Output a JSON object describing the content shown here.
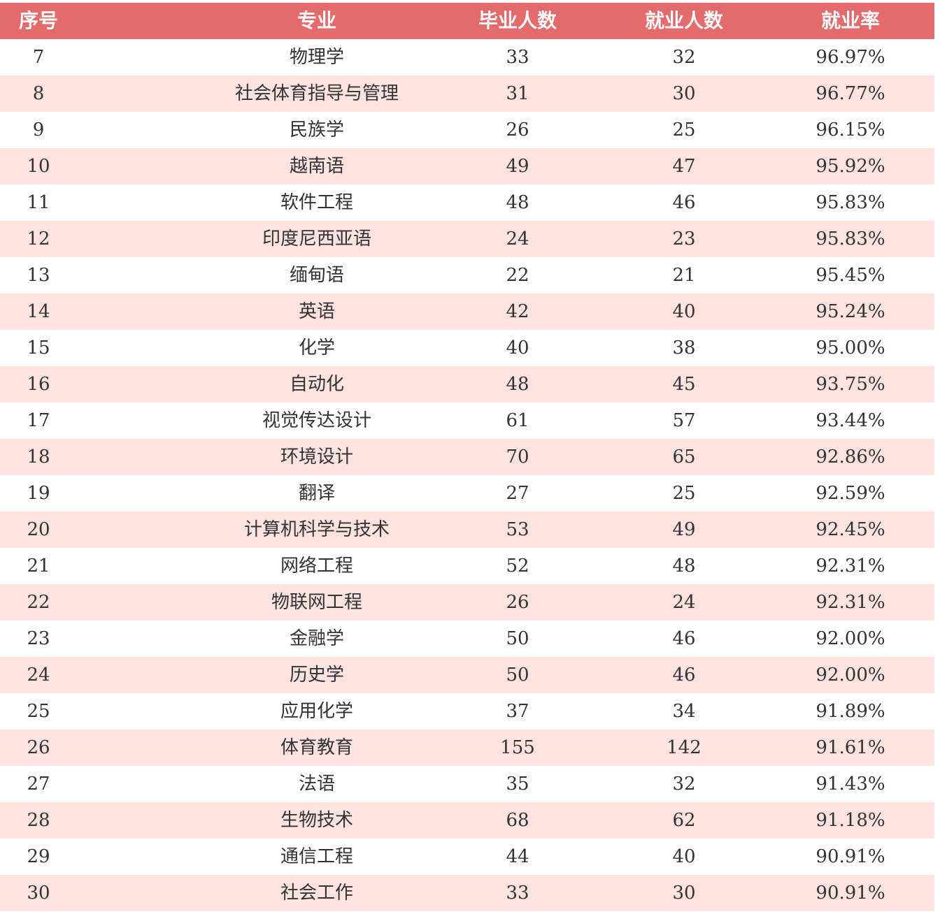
{
  "table": {
    "header": [
      "序号",
      "专业",
      "毕业人数",
      "就业人数",
      "就业率"
    ],
    "rows": [
      [
        7,
        "物理学",
        33,
        32,
        "96.97%"
      ],
      [
        8,
        "社会体育指导与管理",
        31,
        30,
        "96.77%"
      ],
      [
        9,
        "民族学",
        26,
        25,
        "96.15%"
      ],
      [
        10,
        "越南语",
        49,
        47,
        "95.92%"
      ],
      [
        11,
        "软件工程",
        48,
        46,
        "95.83%"
      ],
      [
        12,
        "印度尼西亚语",
        24,
        23,
        "95.83%"
      ],
      [
        13,
        "缅甸语",
        22,
        21,
        "95.45%"
      ],
      [
        14,
        "英语",
        42,
        40,
        "95.24%"
      ],
      [
        15,
        "化学",
        40,
        38,
        "95.00%"
      ],
      [
        16,
        "自动化",
        48,
        45,
        "93.75%"
      ],
      [
        17,
        "视觉传达设计",
        61,
        57,
        "93.44%"
      ],
      [
        18,
        "环境设计",
        70,
        65,
        "92.86%"
      ],
      [
        19,
        "翻译",
        27,
        25,
        "92.59%"
      ],
      [
        20,
        "计算机科学与技术",
        53,
        49,
        "92.45%"
      ],
      [
        21,
        "网络工程",
        52,
        48,
        "92.31%"
      ],
      [
        22,
        "物联网工程",
        26,
        24,
        "92.31%"
      ],
      [
        23,
        "金融学",
        50,
        46,
        "92.00%"
      ],
      [
        24,
        "历史学",
        50,
        46,
        "92.00%"
      ],
      [
        25,
        "应用化学",
        37,
        34,
        "91.89%"
      ],
      [
        26,
        "体育教育",
        155,
        142,
        "91.61%"
      ],
      [
        27,
        "法语",
        35,
        32,
        "91.43%"
      ],
      [
        28,
        "生物技术",
        68,
        62,
        "91.18%"
      ],
      [
        29,
        "通信工程",
        44,
        40,
        "90.91%"
      ],
      [
        30,
        "社会工作",
        33,
        30,
        "90.91%"
      ]
    ]
  }
}
